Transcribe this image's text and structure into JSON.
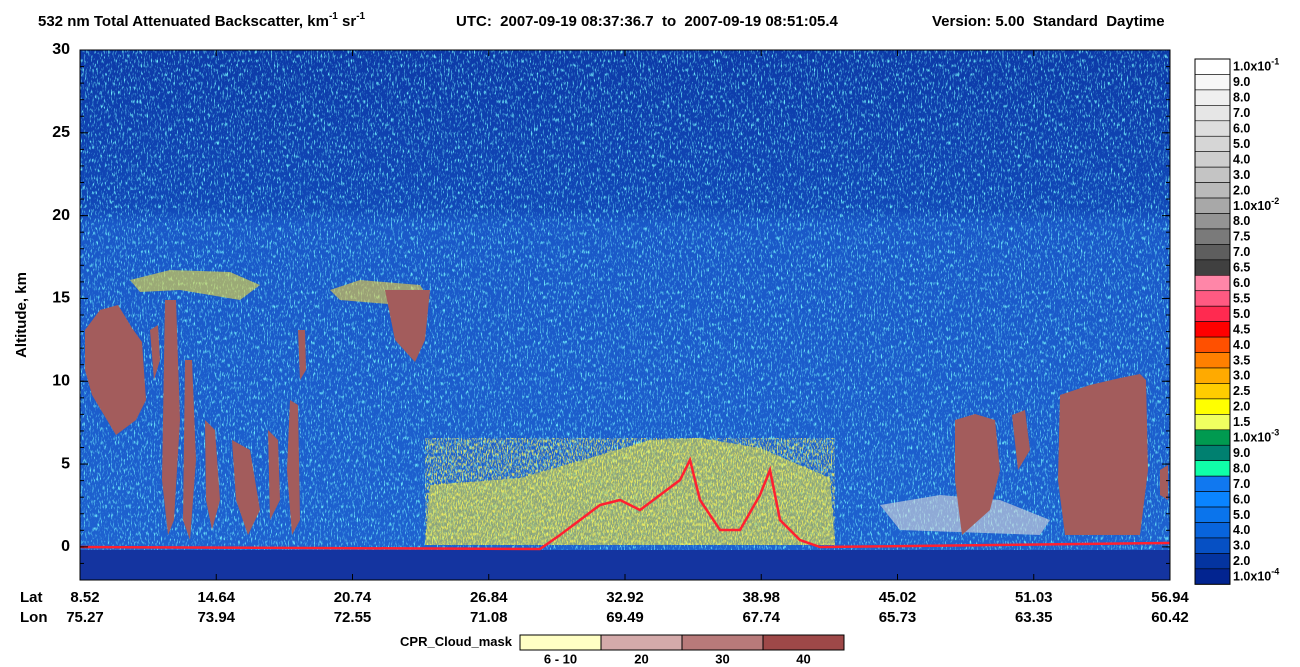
{
  "chart_data": {
    "type": "curtain",
    "title_parts": [
      "532 nm Total Attenuated Backscatter, km",
      "-1",
      " sr",
      "-1"
    ],
    "utc": "UTC:  2007-09-19 08:37:36.7  to  2007-09-19 08:51:05.4",
    "version": "Version: 5.00  Standard  Daytime",
    "y_label": "Altitude, km",
    "ylim": [
      -2,
      30
    ],
    "yticks": [
      0,
      5,
      10,
      15,
      20,
      25,
      30
    ],
    "x_rows": [
      {
        "name": "Lat",
        "values": [
          8.52,
          14.64,
          20.74,
          26.84,
          32.92,
          38.98,
          45.02,
          51.03,
          56.94
        ]
      },
      {
        "name": "Lon",
        "values": [
          75.27,
          73.94,
          72.55,
          71.08,
          69.49,
          67.74,
          65.73,
          63.35,
          60.42
        ]
      }
    ],
    "colorbar": [
      {
        "label": "1.0x10",
        "exp": "-1",
        "color": "#ffffff"
      },
      {
        "label": "9.0",
        "color": "#f7f7f7"
      },
      {
        "label": "8.0",
        "color": "#efefef"
      },
      {
        "label": "7.0",
        "color": "#e6e6e6"
      },
      {
        "label": "6.0",
        "color": "#dedede"
      },
      {
        "label": "5.0",
        "color": "#d6d6d6"
      },
      {
        "label": "4.0",
        "color": "#cecece"
      },
      {
        "label": "3.0",
        "color": "#c4c4c4"
      },
      {
        "label": "2.0",
        "color": "#bababa"
      },
      {
        "label": "1.0x10",
        "exp": "-2",
        "color": "#a8a8a8"
      },
      {
        "label": "8.0",
        "color": "#949494"
      },
      {
        "label": "7.5",
        "color": "#7a7a7a"
      },
      {
        "label": "7.0",
        "color": "#5e5e5e"
      },
      {
        "label": "6.5",
        "color": "#404040"
      },
      {
        "label": "6.0",
        "color": "#ff86a8"
      },
      {
        "label": "5.5",
        "color": "#ff5a82"
      },
      {
        "label": "5.0",
        "color": "#ff2a50"
      },
      {
        "label": "4.5",
        "color": "#ff0000"
      },
      {
        "label": "4.0",
        "color": "#ff5000"
      },
      {
        "label": "3.5",
        "color": "#ff8000"
      },
      {
        "label": "3.0",
        "color": "#ffaa00"
      },
      {
        "label": "2.5",
        "color": "#ffcc00"
      },
      {
        "label": "2.0",
        "color": "#ffff00"
      },
      {
        "label": "1.5",
        "color": "#f0ff60"
      },
      {
        "label": "1.0x10",
        "exp": "-3",
        "color": "#009a50"
      },
      {
        "label": "9.0",
        "color": "#008070"
      },
      {
        "label": "8.0",
        "color": "#10ffa8"
      },
      {
        "label": "7.0",
        "color": "#1078f0"
      },
      {
        "label": "6.0",
        "color": "#0a84ff"
      },
      {
        "label": "5.0",
        "color": "#0a74ec"
      },
      {
        "label": "4.0",
        "color": "#0864dc"
      },
      {
        "label": "3.0",
        "color": "#0650c4"
      },
      {
        "label": "2.0",
        "color": "#0434a0"
      },
      {
        "label": "1.0x10",
        "exp": "-4",
        "color": "#022490"
      }
    ],
    "cloud_mask": {
      "title": "CPR_Cloud_mask",
      "items": [
        {
          "label": "6 - 10",
          "color": "#ffffc4"
        },
        {
          "label": "20",
          "color": "#d4aaaa"
        },
        {
          "label": "30",
          "color": "#b87a7a"
        },
        {
          "label": "40",
          "color": "#9e4848"
        }
      ]
    }
  }
}
